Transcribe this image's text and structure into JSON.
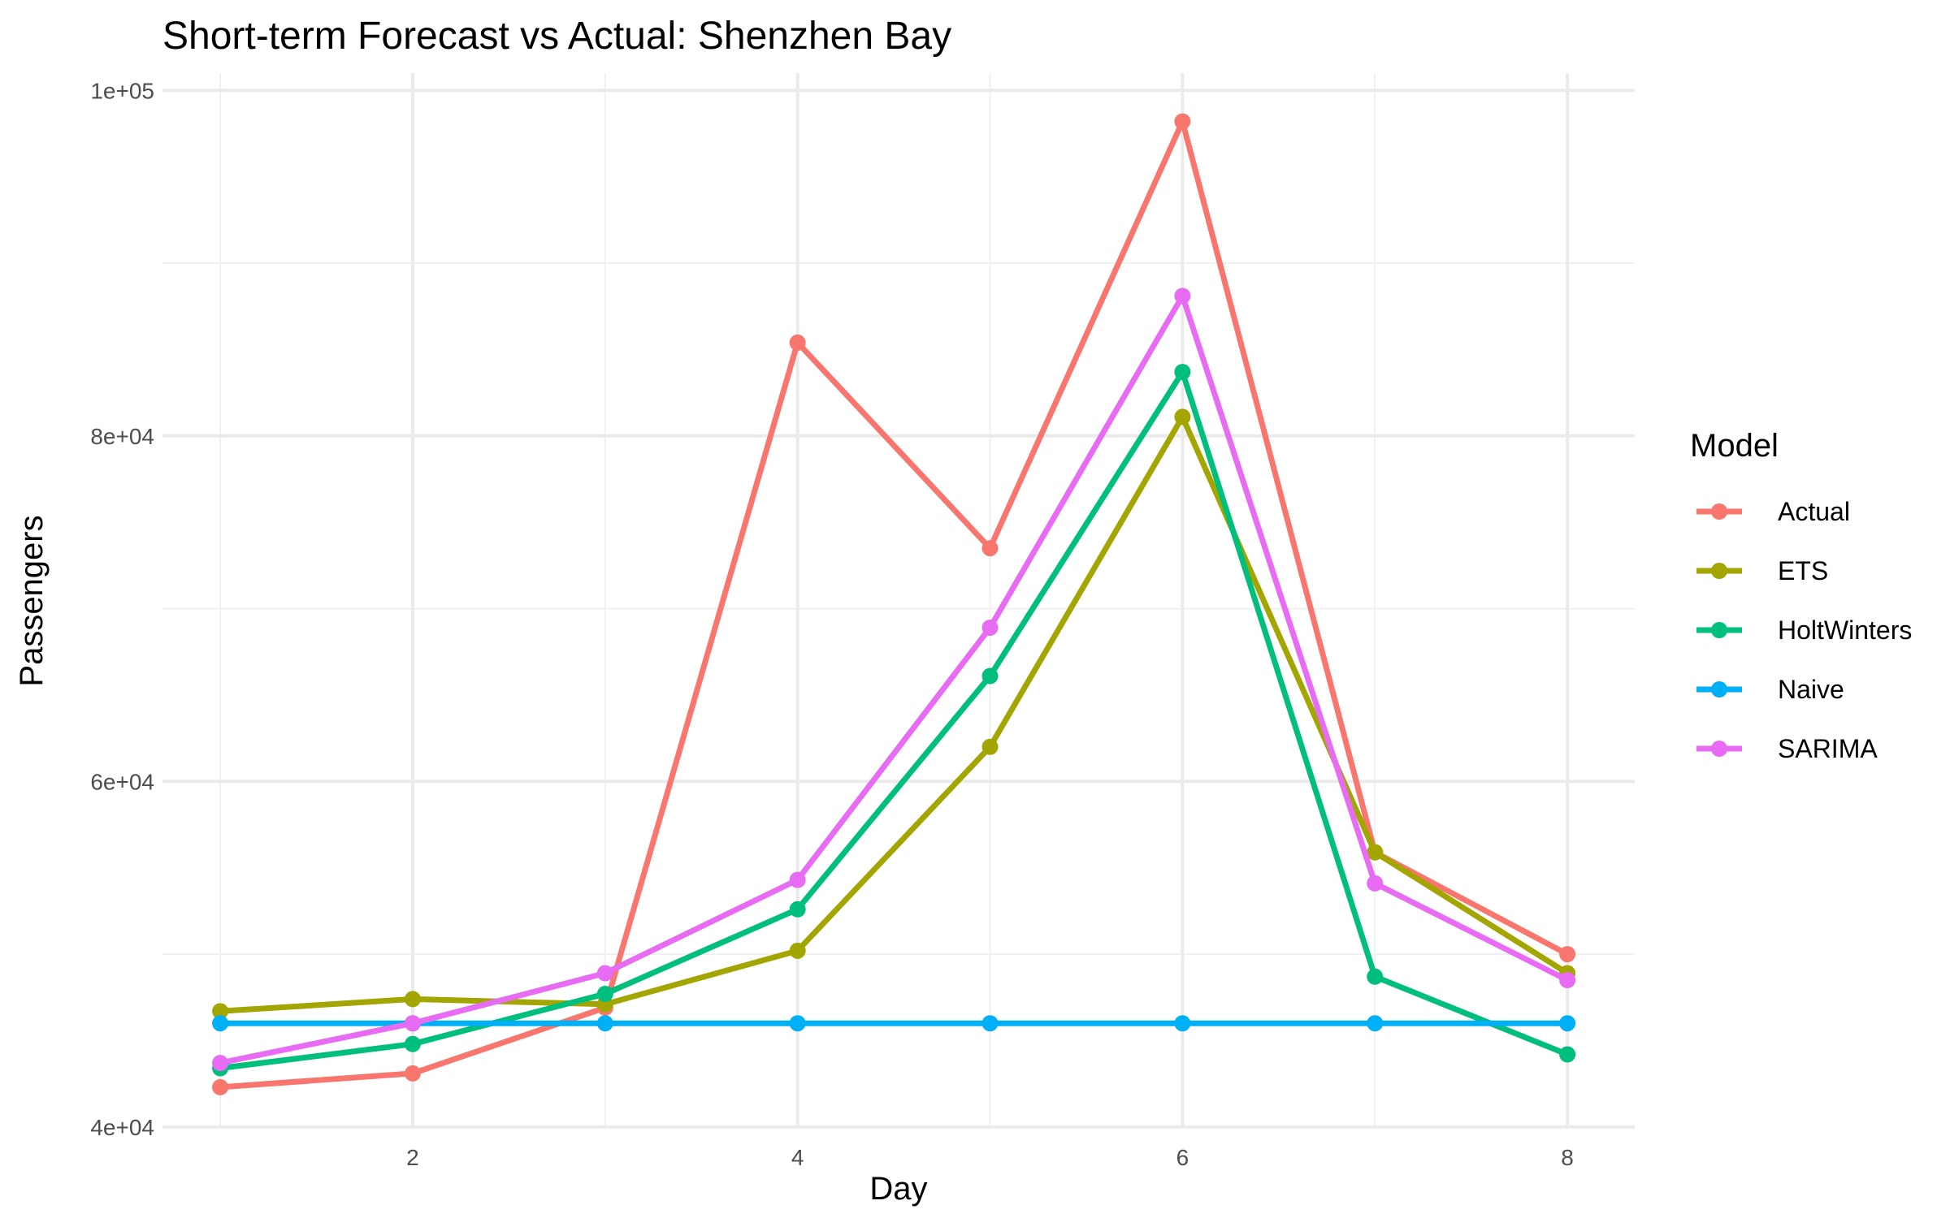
{
  "chart_data": {
    "type": "line",
    "title": "Short-term Forecast vs Actual: Shenzhen Bay",
    "xlabel": "Day",
    "ylabel": "Passengers",
    "x": [
      1,
      2,
      3,
      4,
      5,
      6,
      7,
      8
    ],
    "xlim": [
      0.7,
      8.35
    ],
    "ylim": [
      39900,
      101000
    ],
    "x_ticks": [
      2,
      4,
      6,
      8
    ],
    "x_tick_labels": [
      "2",
      "4",
      "6",
      "8"
    ],
    "y_ticks": [
      40000,
      60000,
      80000,
      100000
    ],
    "y_tick_labels": [
      "4e+04",
      "6e+04",
      "8e+04",
      "1e+05"
    ],
    "grid": true,
    "legend": {
      "title": "Model",
      "position": "right"
    },
    "series": [
      {
        "name": "Actual",
        "color": "#F8766D",
        "values": [
          42300,
          43100,
          46900,
          85400,
          73500,
          98200,
          55900,
          50000
        ]
      },
      {
        "name": "ETS",
        "color": "#A3A500",
        "values": [
          46700,
          47400,
          47100,
          50200,
          62000,
          81100,
          55900,
          48900
        ]
      },
      {
        "name": "HoltWinters",
        "color": "#00BF7D",
        "values": [
          43400,
          44800,
          47700,
          52600,
          66100,
          83700,
          48700,
          44200
        ]
      },
      {
        "name": "Naive",
        "color": "#00B0F6",
        "values": [
          46000,
          46000,
          46000,
          46000,
          46000,
          46000,
          46000,
          46000
        ]
      },
      {
        "name": "SARIMA",
        "color": "#E76BF3",
        "values": [
          43700,
          46000,
          48900,
          54300,
          68900,
          88100,
          54100,
          48500
        ]
      }
    ]
  }
}
